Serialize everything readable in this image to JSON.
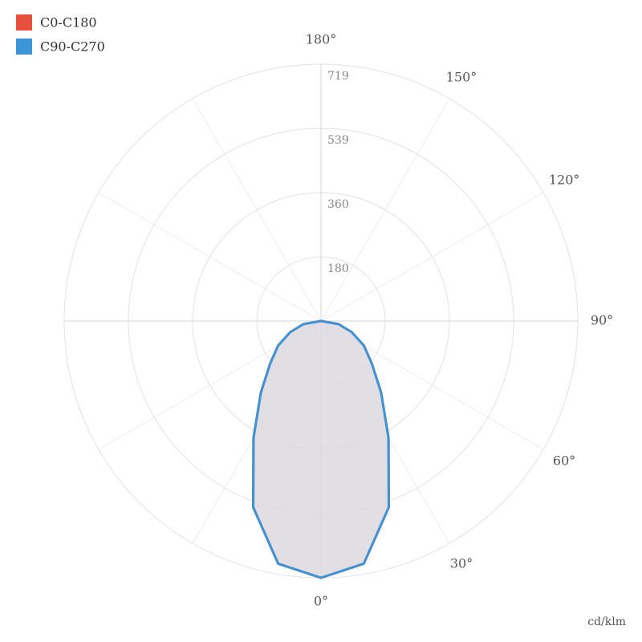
{
  "chart_data": {
    "type": "polar-line",
    "unit": "cd/klm",
    "x": [
      -90,
      -80,
      -70,
      -60,
      -50,
      -40,
      -30,
      -20,
      -10,
      0,
      10,
      20,
      30,
      40,
      50,
      60,
      70,
      80,
      90
    ],
    "series": [
      {
        "name": "C0-C180",
        "color": "#e8503e",
        "values": [
          0,
          50,
          92,
          139,
          186,
          262,
          378,
          555,
          690,
          719,
          690,
          555,
          378,
          262,
          186,
          139,
          92,
          50,
          0
        ]
      },
      {
        "name": "C90-C270",
        "color": "#3d94d6",
        "values": [
          0,
          50,
          92,
          139,
          186,
          262,
          378,
          555,
          690,
          719,
          690,
          555,
          378,
          262,
          186,
          139,
          92,
          50,
          0
        ]
      }
    ],
    "area_color": "#dcd8e0",
    "rlim": [
      0,
      719
    ],
    "rticks": [
      {
        "value": 179.75,
        "label": "180"
      },
      {
        "value": 359.5,
        "label": "360"
      },
      {
        "value": 539.25,
        "label": "539"
      },
      {
        "value": 719,
        "label": "719"
      }
    ],
    "angleticks": [
      {
        "value": 0,
        "label": "0°"
      },
      {
        "value": 30,
        "label": "30°"
      },
      {
        "value": 60,
        "label": "60°"
      },
      {
        "value": 90,
        "label": "90°"
      },
      {
        "value": 120,
        "label": "120°"
      },
      {
        "value": 150,
        "label": "150°"
      },
      {
        "value": 180,
        "label": "180°"
      }
    ],
    "grid": true,
    "legend": "top-left"
  }
}
